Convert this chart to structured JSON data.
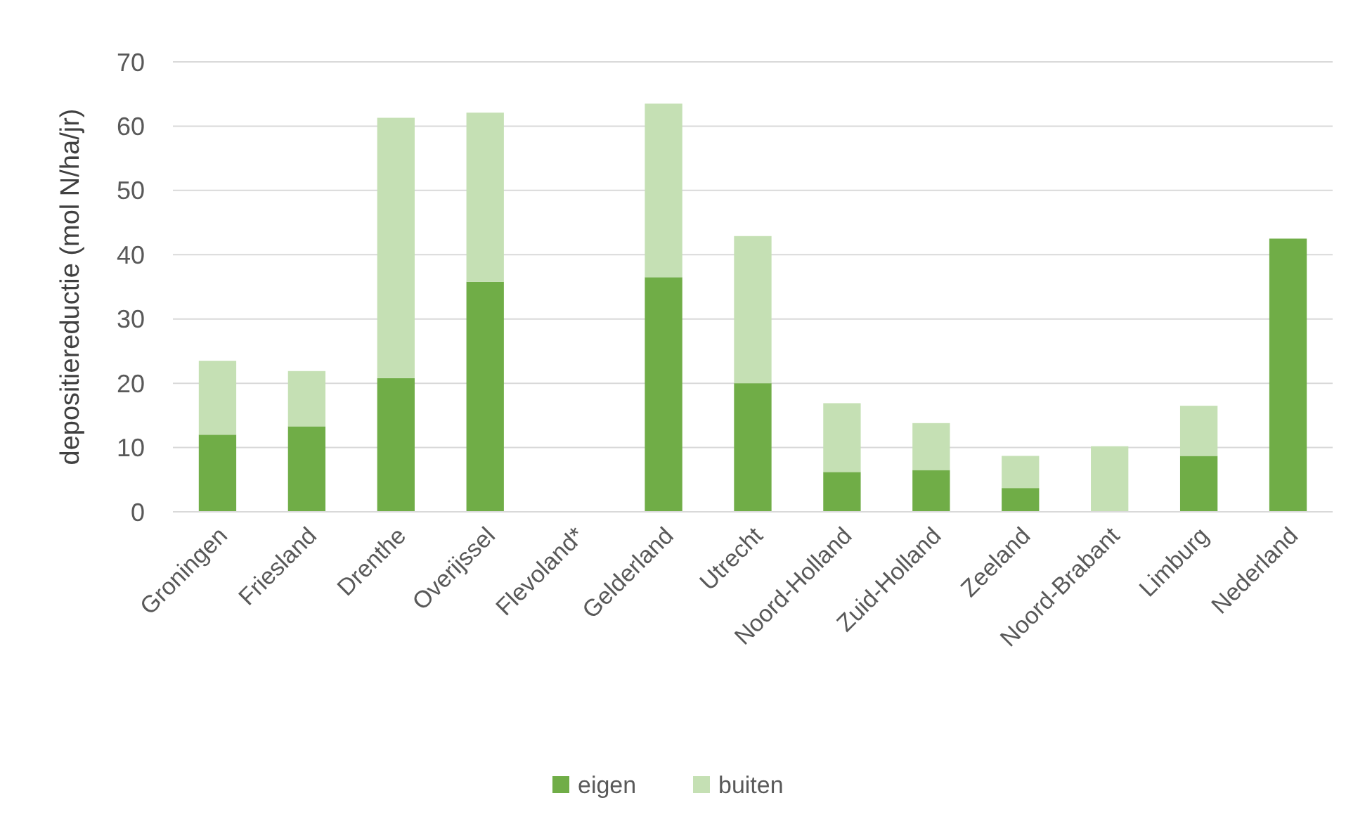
{
  "chart_data": {
    "type": "bar",
    "stacked": true,
    "ylabel": "depositiereductie (mol N/ha/jr)",
    "categories": [
      "Groningen",
      "Friesland",
      "Drenthe",
      "Overijssel",
      "Flevoland*",
      "Gelderland",
      "Utrecht",
      "Noord-Holland",
      "Zuid-Holland",
      "Zeeland",
      "Noord-Brabant",
      "Limburg",
      "Nederland"
    ],
    "series": [
      {
        "name": "eigen",
        "color": "#70ad47",
        "values": [
          12,
          13.3,
          20.8,
          35.8,
          0,
          36.5,
          20,
          6.2,
          6.5,
          3.7,
          0,
          8.7,
          42.5
        ]
      },
      {
        "name": "buiten",
        "color": "#c5e0b4",
        "values": [
          11.5,
          8.6,
          40.5,
          26.3,
          0,
          27,
          22.9,
          10.7,
          7.3,
          5,
          10.2,
          7.8,
          0
        ]
      }
    ],
    "ylim": [
      0,
      70
    ],
    "yticks": [
      0,
      10,
      20,
      30,
      40,
      50,
      60,
      70
    ],
    "grid": "y",
    "legend": "bottom"
  }
}
